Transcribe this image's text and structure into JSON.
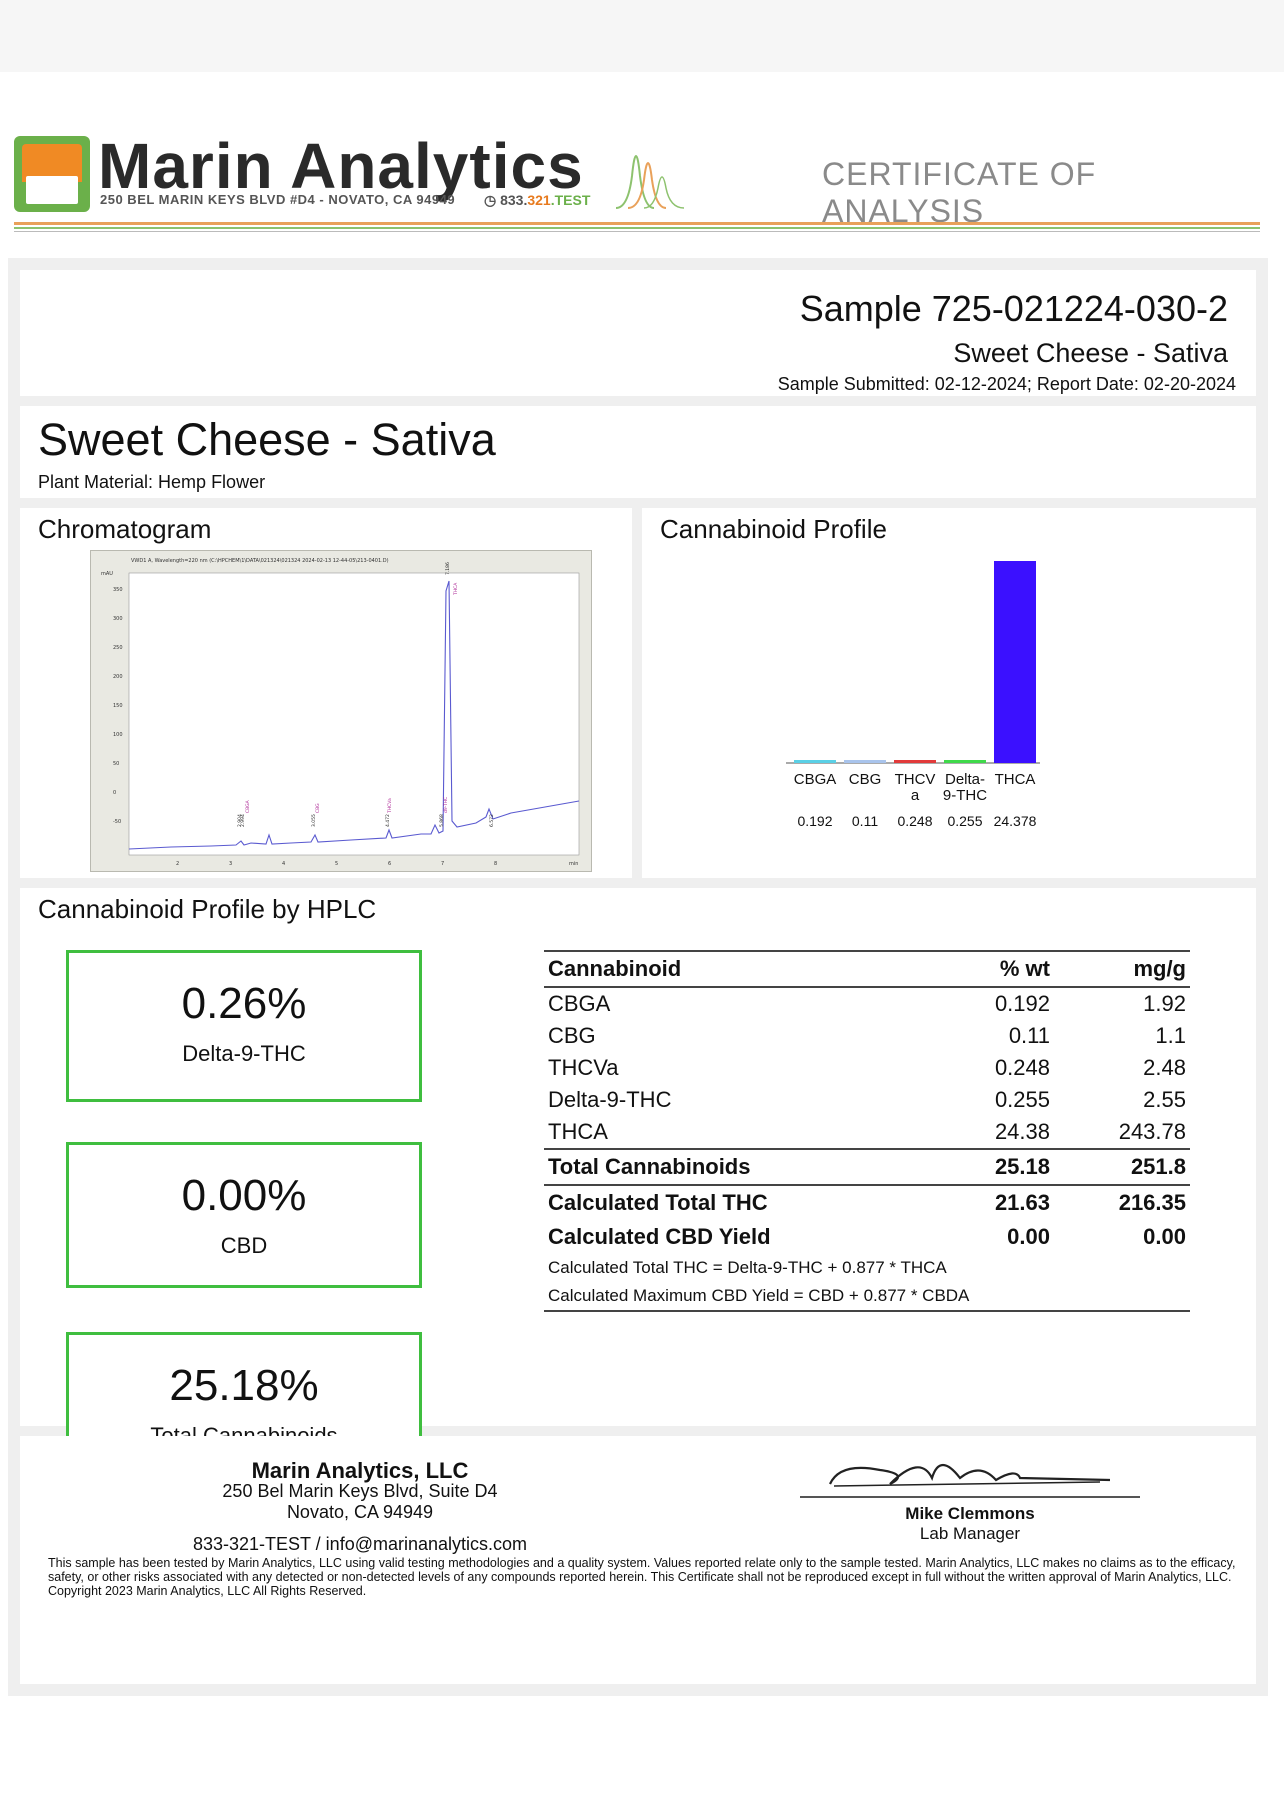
{
  "header": {
    "brand": "Marin Analytics",
    "address": "250 BEL MARIN KEYS BLVD #D4 - NOVATO, CA 94949",
    "phone_start": "833.",
    "phone_mid": "321",
    "phone_end": ".TEST",
    "doc_type": "CERTIFICATE OF ANALYSIS",
    "colors": {
      "orange": "#f08a24",
      "green": "#6bb04a"
    }
  },
  "sample": {
    "title": "Sample 725-021224-030-2",
    "name": "Sweet Cheese - Sativa",
    "dates": "Sample Submitted: 02-12-2024;  Report Date: 02-20-2024"
  },
  "product": {
    "title": "Sweet Cheese - Sativa",
    "material": "Plant Material: Hemp Flower"
  },
  "chromatogram": {
    "title": "Chromatogram",
    "image_header": "VWD1 A, Wavelength=220 nm (C:\\HPCHEM\\1\\DATA\\021324\\021324 2024-02-13 12-44-05\\213-0401.D)",
    "y_unit": "mAU",
    "x_unit": "min",
    "y_ticks": [
      "350",
      "300",
      "250",
      "200",
      "150",
      "100",
      "50",
      "0",
      "-50"
    ],
    "x_ticks": [
      "2",
      "3",
      "4",
      "5",
      "6",
      "7",
      "8"
    ],
    "peak_labels": [
      "CBGA",
      "CBG",
      "THCVa",
      "d9-THC",
      "THCA"
    ],
    "retention_labels": [
      "2.904",
      "2.994",
      "3.055",
      "4.472",
      "5.868",
      "6.572",
      "7.186"
    ]
  },
  "profile_chart": {
    "title": "Cannabinoid Profile",
    "chart_data": {
      "type": "bar",
      "categories": [
        "CBGA",
        "CBG",
        "THCVa",
        "Delta-9-THC",
        "THCA"
      ],
      "category_lines": [
        [
          "CBGA"
        ],
        [
          "CBG"
        ],
        [
          "THCV",
          "a"
        ],
        [
          "Delta-",
          "9-THC"
        ],
        [
          "THCA"
        ]
      ],
      "values": [
        0.192,
        0.11,
        0.248,
        0.255,
        24.378
      ],
      "value_labels": [
        "0.192",
        "0.11",
        "0.248",
        "0.255",
        "24.378"
      ],
      "colors": [
        "#5ad0e6",
        "#a9c4ec",
        "#e23a3a",
        "#3fd94a",
        "#3b10ff"
      ],
      "ylim": [
        0,
        24.378
      ],
      "title": "",
      "xlabel": "",
      "ylabel": ""
    }
  },
  "hplc": {
    "title": "Cannabinoid Profile by HPLC",
    "kpis": [
      {
        "value": "0.26%",
        "label": "Delta-9-THC"
      },
      {
        "value": "0.00%",
        "label": "CBD"
      },
      {
        "value": "25.18%",
        "label": "Total Cannabinoids"
      }
    ],
    "columns": [
      "Cannabinoid",
      "% wt",
      "mg/g"
    ],
    "rows": [
      [
        "CBGA",
        "0.192",
        "1.92"
      ],
      [
        "CBG",
        "0.11",
        "1.1"
      ],
      [
        "THCVa",
        "0.248",
        "2.48"
      ],
      [
        "Delta-9-THC",
        "0.255",
        "2.55"
      ],
      [
        "THCA",
        "24.38",
        "243.78"
      ]
    ],
    "total": [
      "Total Cannabinoids",
      "25.18",
      "251.8"
    ],
    "calc_thc": [
      "Calculated Total THC",
      "21.63",
      "216.35"
    ],
    "calc_cbd": [
      "Calculated CBD Yield",
      "0.00",
      "0.00"
    ],
    "formula_thc": "Calculated Total THC = Delta-9-THC + 0.877 * THCA",
    "formula_cbd": "Calculated Maximum CBD Yield = CBD + 0.877 * CBDA"
  },
  "footer": {
    "org_name": "Marin Analytics, LLC",
    "org_street": "250 Bel Marin Keys Blvd, Suite D4",
    "org_city": "Novato, CA 94949",
    "contact": "833-321-TEST / info@marinanalytics.com",
    "signer_name": "Mike Clemmons",
    "signer_role": "Lab Manager",
    "disclaimer": "This sample has been tested by Marin Analytics, LLC using valid testing methodologies and a quality system.  Values reported relate only to the sample tested.  Marin Analytics, LLC makes no claims as to the efficacy, safety, or other risks associated with any detected or non-detected levels of any compounds reported herein.  This Certificate shall not be reproduced except in full without the written approval of Marin Analytics, LLC.     Copyright 2023 Marin Analytics, LLC All Rights Reserved."
  }
}
